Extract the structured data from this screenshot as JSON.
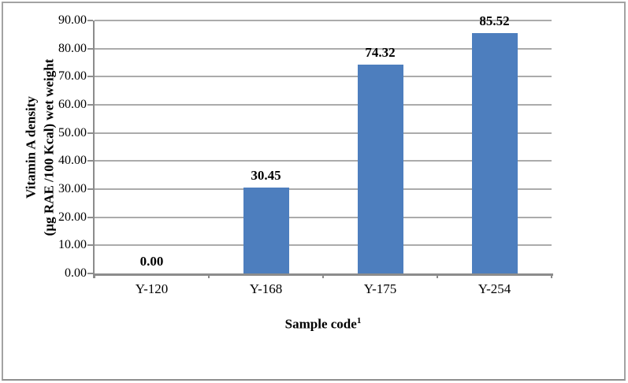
{
  "chart_data": {
    "type": "bar",
    "categories": [
      "Y-120",
      "Y-168",
      "Y-175",
      "Y-254"
    ],
    "values": [
      0.0,
      30.45,
      74.32,
      85.52
    ],
    "data_labels": [
      "0.00",
      "30.45",
      "74.32",
      "85.52"
    ],
    "title": "",
    "xlabel": "Sample code",
    "xlabel_superscript": "1",
    "ylabel_line1": "Vitamin A density",
    "ylabel_line2": "(µg RAE /100 Kcal) wet weight",
    "ylim": [
      0,
      90
    ],
    "ytick_step": 10,
    "ytick_labels": [
      "0.00",
      "10.00",
      "20.00",
      "30.00",
      "40.00",
      "50.00",
      "60.00",
      "70.00",
      "80.00",
      "90.00"
    ],
    "grid": true,
    "legend": "none",
    "bar_color": "#4d7ebe",
    "gridline_color": "#ababab",
    "axis_color": "#8c8c8c",
    "text_color": "#000000",
    "background_color": "#ffffff"
  }
}
